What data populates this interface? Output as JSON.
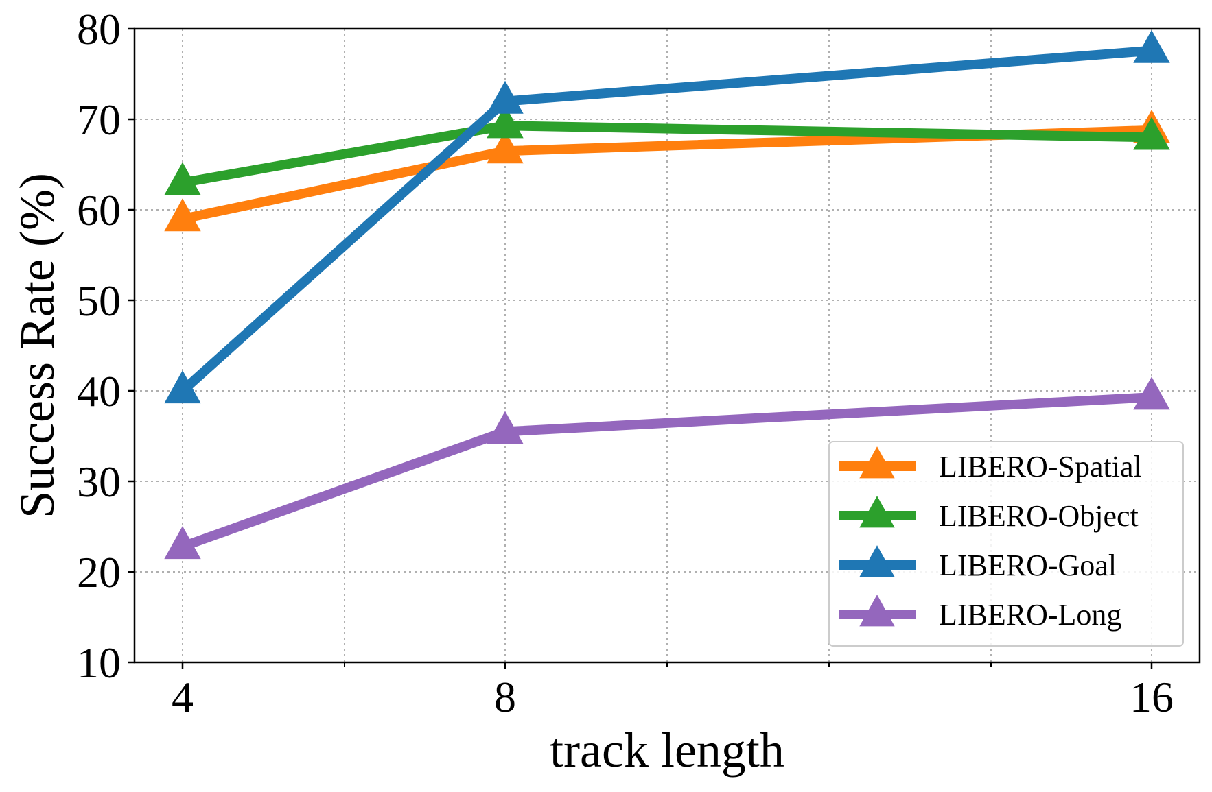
{
  "chart_data": {
    "type": "line",
    "title": "",
    "xlabel": "track length",
    "ylabel": "Success Rate (%)",
    "x": [
      4,
      8,
      16
    ],
    "x_ticks": [
      "4",
      "8",
      "16"
    ],
    "y_ticks": [
      "10",
      "20",
      "30",
      "40",
      "50",
      "60",
      "70",
      "80"
    ],
    "ylim": [
      10,
      80
    ],
    "grid": true,
    "legend_position": "lower-right",
    "marker": "triangle",
    "series": [
      {
        "name": "LIBERO-Spatial",
        "color": "#ff7f0e",
        "values": [
          59.0,
          66.5,
          68.8
        ]
      },
      {
        "name": "LIBERO-Object",
        "color": "#2ca02c",
        "values": [
          63.0,
          69.3,
          68.0
        ]
      },
      {
        "name": "LIBERO-Goal",
        "color": "#1f77b4",
        "values": [
          40.0,
          72.0,
          77.6
        ]
      },
      {
        "name": "LIBERO-Long",
        "color": "#9467bd",
        "values": [
          22.8,
          35.5,
          39.3
        ]
      }
    ]
  }
}
